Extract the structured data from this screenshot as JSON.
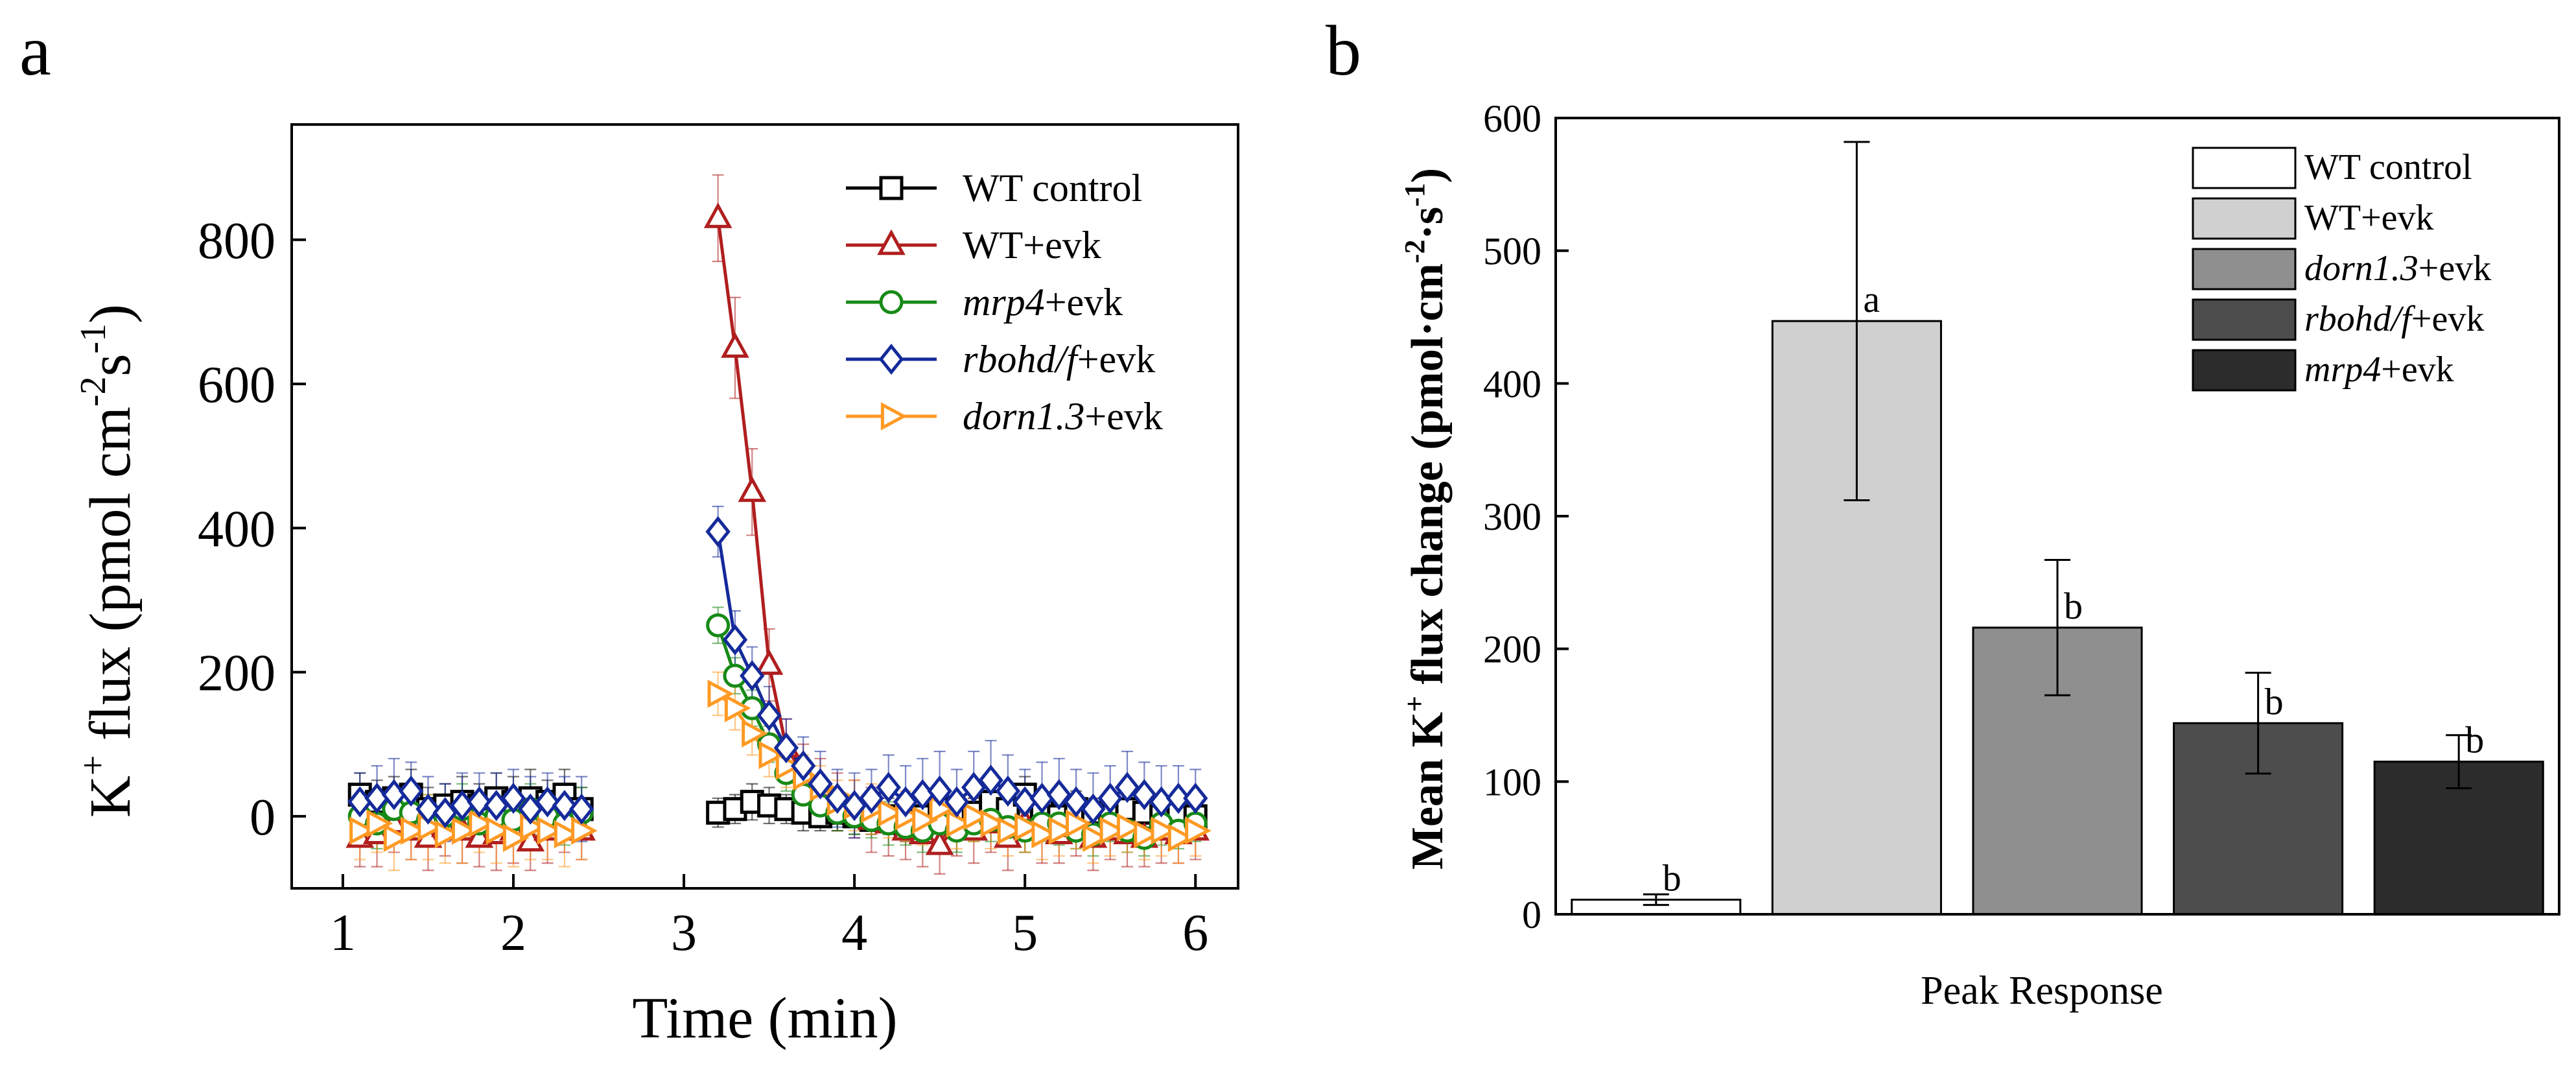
{
  "panels": {
    "a": {
      "letter": "a"
    },
    "b": {
      "letter": "b"
    }
  },
  "colors": {
    "wt_control": "#000000",
    "wt_evk": "#b01e1e",
    "mrp4": "#178a17",
    "rbohd": "#152a9a",
    "dorn": "#ff9a24"
  },
  "chart_data": [
    {
      "id": "a",
      "type": "line",
      "title": "",
      "xlabel": "Time (min)",
      "ylabel_parts": {
        "k": "K",
        "plus": "+",
        "mid": " flux (pmol cm",
        "exp1": "-2",
        "s": "s",
        "exp2": "-1",
        "close": ")"
      },
      "xlim": [
        0.7,
        6.25
      ],
      "ylim": [
        -100,
        960
      ],
      "xticks": [
        "1",
        "2",
        "3",
        "4",
        "5",
        "6"
      ],
      "yticks": [
        "0",
        "200",
        "400",
        "600",
        "800"
      ],
      "legend_position": "top-right",
      "series": [
        {
          "key": "wt_control",
          "legend_name": "WT control",
          "legend_italic": "",
          "legend_rest": "WT control",
          "marker": "square",
          "x": [
            1.1,
            1.2,
            1.3,
            1.4,
            1.5,
            1.6,
            1.7,
            1.8,
            1.9,
            2.0,
            2.1,
            2.2,
            2.3,
            2.4,
            3.2,
            3.3,
            3.4,
            3.5,
            3.6,
            3.7,
            3.8,
            3.9,
            4.0,
            4.1,
            4.2,
            4.3,
            4.4,
            4.5,
            4.6,
            4.7,
            4.8,
            4.9,
            5.0,
            5.1,
            5.2,
            5.3,
            5.4,
            5.5,
            5.6,
            5.7,
            5.8,
            5.9,
            6.0
          ],
          "y": [
            30,
            20,
            25,
            30,
            10,
            15,
            20,
            15,
            25,
            20,
            25,
            20,
            30,
            10,
            5,
            10,
            20,
            15,
            10,
            5,
            0,
            5,
            0,
            -5,
            0,
            -10,
            0,
            10,
            0,
            5,
            20,
            10,
            30,
            10,
            0,
            10,
            5,
            0,
            10,
            5,
            0,
            5,
            0
          ],
          "err": [
            30,
            30,
            30,
            35,
            30,
            30,
            35,
            30,
            35,
            35,
            40,
            30,
            35,
            30,
            20,
            20,
            25,
            25,
            20,
            25,
            20,
            25,
            25,
            20,
            25,
            25,
            20,
            25,
            25,
            20,
            25,
            25,
            25,
            25,
            20,
            25,
            20,
            20,
            25,
            25,
            20,
            25,
            20
          ]
        },
        {
          "key": "wt_evk",
          "legend_name": "WT+evk",
          "legend_italic": "",
          "legend_rest": "WT+evk",
          "marker": "triangle",
          "x": [
            1.1,
            1.2,
            1.3,
            1.4,
            1.5,
            1.6,
            1.7,
            1.8,
            1.9,
            2.0,
            2.1,
            2.2,
            2.3,
            2.4,
            3.2,
            3.3,
            3.4,
            3.5,
            3.6,
            3.7,
            3.8,
            3.9,
            4.0,
            4.1,
            4.2,
            4.3,
            4.4,
            4.5,
            4.6,
            4.7,
            4.8,
            4.9,
            5.0,
            5.1,
            5.2,
            5.3,
            5.4,
            5.5,
            5.6,
            5.7,
            5.8,
            5.9,
            6.0
          ],
          "y": [
            -30,
            -25,
            -10,
            -20,
            -30,
            -15,
            -20,
            -30,
            -25,
            -20,
            -35,
            -20,
            -10,
            -20,
            830,
            650,
            450,
            210,
            95,
            60,
            40,
            20,
            10,
            -5,
            -10,
            -20,
            -25,
            -40,
            -15,
            -20,
            -10,
            -30,
            -10,
            -20,
            -25,
            -15,
            -30,
            -20,
            -25,
            -30,
            -20,
            -25,
            -20
          ],
          "err": [
            40,
            45,
            40,
            40,
            45,
            40,
            45,
            40,
            50,
            45,
            40,
            45,
            40,
            40,
            60,
            70,
            60,
            50,
            40,
            40,
            40,
            40,
            40,
            45,
            45,
            40,
            45,
            40,
            40,
            45,
            40,
            45,
            40,
            45,
            40,
            40,
            45,
            40,
            45,
            40,
            45,
            40,
            40
          ]
        },
        {
          "key": "mrp4",
          "legend_name": "mrp4+evk",
          "legend_italic": "mrp4",
          "legend_rest": "+evk",
          "marker": "circle",
          "x": [
            1.1,
            1.2,
            1.3,
            1.4,
            1.5,
            1.6,
            1.7,
            1.8,
            1.9,
            2.0,
            2.1,
            2.2,
            2.3,
            2.4,
            3.2,
            3.3,
            3.4,
            3.5,
            3.6,
            3.7,
            3.8,
            3.9,
            4.0,
            4.1,
            4.2,
            4.3,
            4.4,
            4.5,
            4.6,
            4.7,
            4.8,
            4.9,
            5.0,
            5.1,
            5.2,
            5.3,
            5.4,
            5.5,
            5.6,
            5.7,
            5.8,
            5.9,
            6.0
          ],
          "y": [
            0,
            -10,
            10,
            5,
            -5,
            0,
            10,
            -10,
            0,
            -5,
            10,
            0,
            -10,
            5,
            265,
            195,
            150,
            100,
            60,
            30,
            15,
            5,
            0,
            -5,
            -10,
            -15,
            -20,
            -10,
            -20,
            -10,
            -5,
            -15,
            -20,
            -10,
            -10,
            -20,
            -25,
            -10,
            -20,
            -30,
            -10,
            -20,
            -10
          ],
          "err": [
            30,
            35,
            30,
            30,
            35,
            30,
            35,
            30,
            35,
            30,
            35,
            30,
            30,
            35,
            25,
            25,
            25,
            25,
            25,
            25,
            25,
            25,
            25,
            25,
            30,
            25,
            30,
            25,
            30,
            25,
            30,
            25,
            30,
            25,
            30,
            25,
            30,
            25,
            30,
            25,
            30,
            25,
            25
          ]
        },
        {
          "key": "rbohd",
          "legend_name": "rbohd/f+evk",
          "legend_italic": "rbohd/f",
          "legend_rest": "+evk",
          "marker": "diamond",
          "x": [
            1.1,
            1.2,
            1.3,
            1.4,
            1.5,
            1.6,
            1.7,
            1.8,
            1.9,
            2.0,
            2.1,
            2.2,
            2.3,
            2.4,
            3.2,
            3.3,
            3.4,
            3.5,
            3.6,
            3.7,
            3.8,
            3.9,
            4.0,
            4.1,
            4.2,
            4.3,
            4.4,
            4.5,
            4.6,
            4.7,
            4.8,
            4.9,
            5.0,
            5.1,
            5.2,
            5.3,
            5.4,
            5.5,
            5.6,
            5.7,
            5.8,
            5.9,
            6.0
          ],
          "y": [
            20,
            25,
            30,
            35,
            10,
            5,
            15,
            20,
            15,
            25,
            10,
            20,
            15,
            10,
            395,
            245,
            195,
            140,
            95,
            70,
            45,
            25,
            15,
            25,
            40,
            20,
            30,
            35,
            20,
            40,
            50,
            35,
            20,
            25,
            30,
            20,
            10,
            25,
            40,
            30,
            20,
            25,
            25
          ],
          "err": [
            40,
            45,
            50,
            40,
            45,
            40,
            45,
            40,
            45,
            40,
            45,
            40,
            40,
            45,
            35,
            40,
            40,
            40,
            40,
            40,
            45,
            40,
            45,
            40,
            45,
            50,
            50,
            55,
            45,
            50,
            55,
            50,
            45,
            50,
            50,
            45,
            50,
            45,
            50,
            45,
            50,
            45,
            40
          ]
        },
        {
          "key": "dorn",
          "legend_name": "dorn1.3+evk",
          "legend_italic": "dorn1.3",
          "legend_rest": "+evk",
          "marker": "triangle-right",
          "x": [
            1.1,
            1.2,
            1.3,
            1.4,
            1.5,
            1.6,
            1.7,
            1.8,
            1.9,
            2.0,
            2.1,
            2.2,
            2.3,
            2.4,
            3.2,
            3.3,
            3.4,
            3.5,
            3.6,
            3.7,
            3.8,
            3.9,
            4.0,
            4.1,
            4.2,
            4.3,
            4.4,
            4.5,
            4.6,
            4.7,
            4.8,
            4.9,
            5.0,
            5.1,
            5.2,
            5.3,
            5.4,
            5.5,
            5.6,
            5.7,
            5.8,
            5.9,
            6.0
          ],
          "y": [
            -20,
            -10,
            -30,
            -20,
            -15,
            -25,
            -20,
            -10,
            -20,
            -30,
            -15,
            -20,
            -25,
            -20,
            170,
            150,
            115,
            85,
            70,
            55,
            40,
            20,
            15,
            10,
            5,
            0,
            -5,
            10,
            -10,
            0,
            -10,
            -20,
            -15,
            -25,
            -20,
            -10,
            -30,
            -20,
            -15,
            -25,
            -20,
            -30,
            -20
          ],
          "err": [
            40,
            40,
            45,
            40,
            45,
            40,
            45,
            40,
            45,
            40,
            45,
            40,
            45,
            40,
            30,
            30,
            30,
            30,
            30,
            30,
            30,
            30,
            35,
            35,
            35,
            35,
            35,
            35,
            35,
            35,
            35,
            35,
            35,
            35,
            35,
            35,
            35,
            35,
            35,
            35,
            35,
            35,
            35
          ]
        }
      ]
    },
    {
      "id": "b",
      "type": "bar",
      "title": "",
      "xlabel": "Peak Response",
      "ylabel_parts": {
        "mean": "Mean K",
        "plus": "+",
        "mid": " flux change (pmol·cm",
        "exp1": "-2",
        "dot": "·s",
        "exp2": "-1",
        "close": ")"
      },
      "ylim": [
        0,
        600
      ],
      "yticks": [
        "0",
        "100",
        "200",
        "300",
        "400",
        "500",
        "600"
      ],
      "legend_position": "top-right",
      "categories": [
        "WT control",
        "WT+evk",
        "dorn1.3+evk",
        "rbohd/f+evk",
        "mrp4+evk"
      ],
      "values": [
        11,
        447,
        216,
        144,
        115
      ],
      "errors": [
        4,
        135,
        51,
        38,
        20
      ],
      "letters": [
        "b",
        "a",
        "b",
        "b",
        "b"
      ],
      "bar_colors": [
        "#ffffff",
        "#d0d0d0",
        "#8f8f8f",
        "#4d4d4d",
        "#2c2c2c"
      ],
      "legend": [
        {
          "name": "WT control",
          "italic": "",
          "rest": "WT control",
          "color": "#ffffff"
        },
        {
          "name": "WT+evk",
          "italic": "",
          "rest": "WT+evk",
          "color": "#d0d0d0"
        },
        {
          "name": "dorn1.3+evk",
          "italic": "dorn1.3",
          "rest": "+evk",
          "color": "#8f8f8f"
        },
        {
          "name": "rbohd/f+evk",
          "italic": "rbohd/f",
          "rest": "+evk",
          "color": "#4d4d4d"
        },
        {
          "name": "mrp4+evk",
          "italic": "mrp4",
          "rest": "+evk",
          "color": "#2c2c2c"
        }
      ]
    }
  ]
}
